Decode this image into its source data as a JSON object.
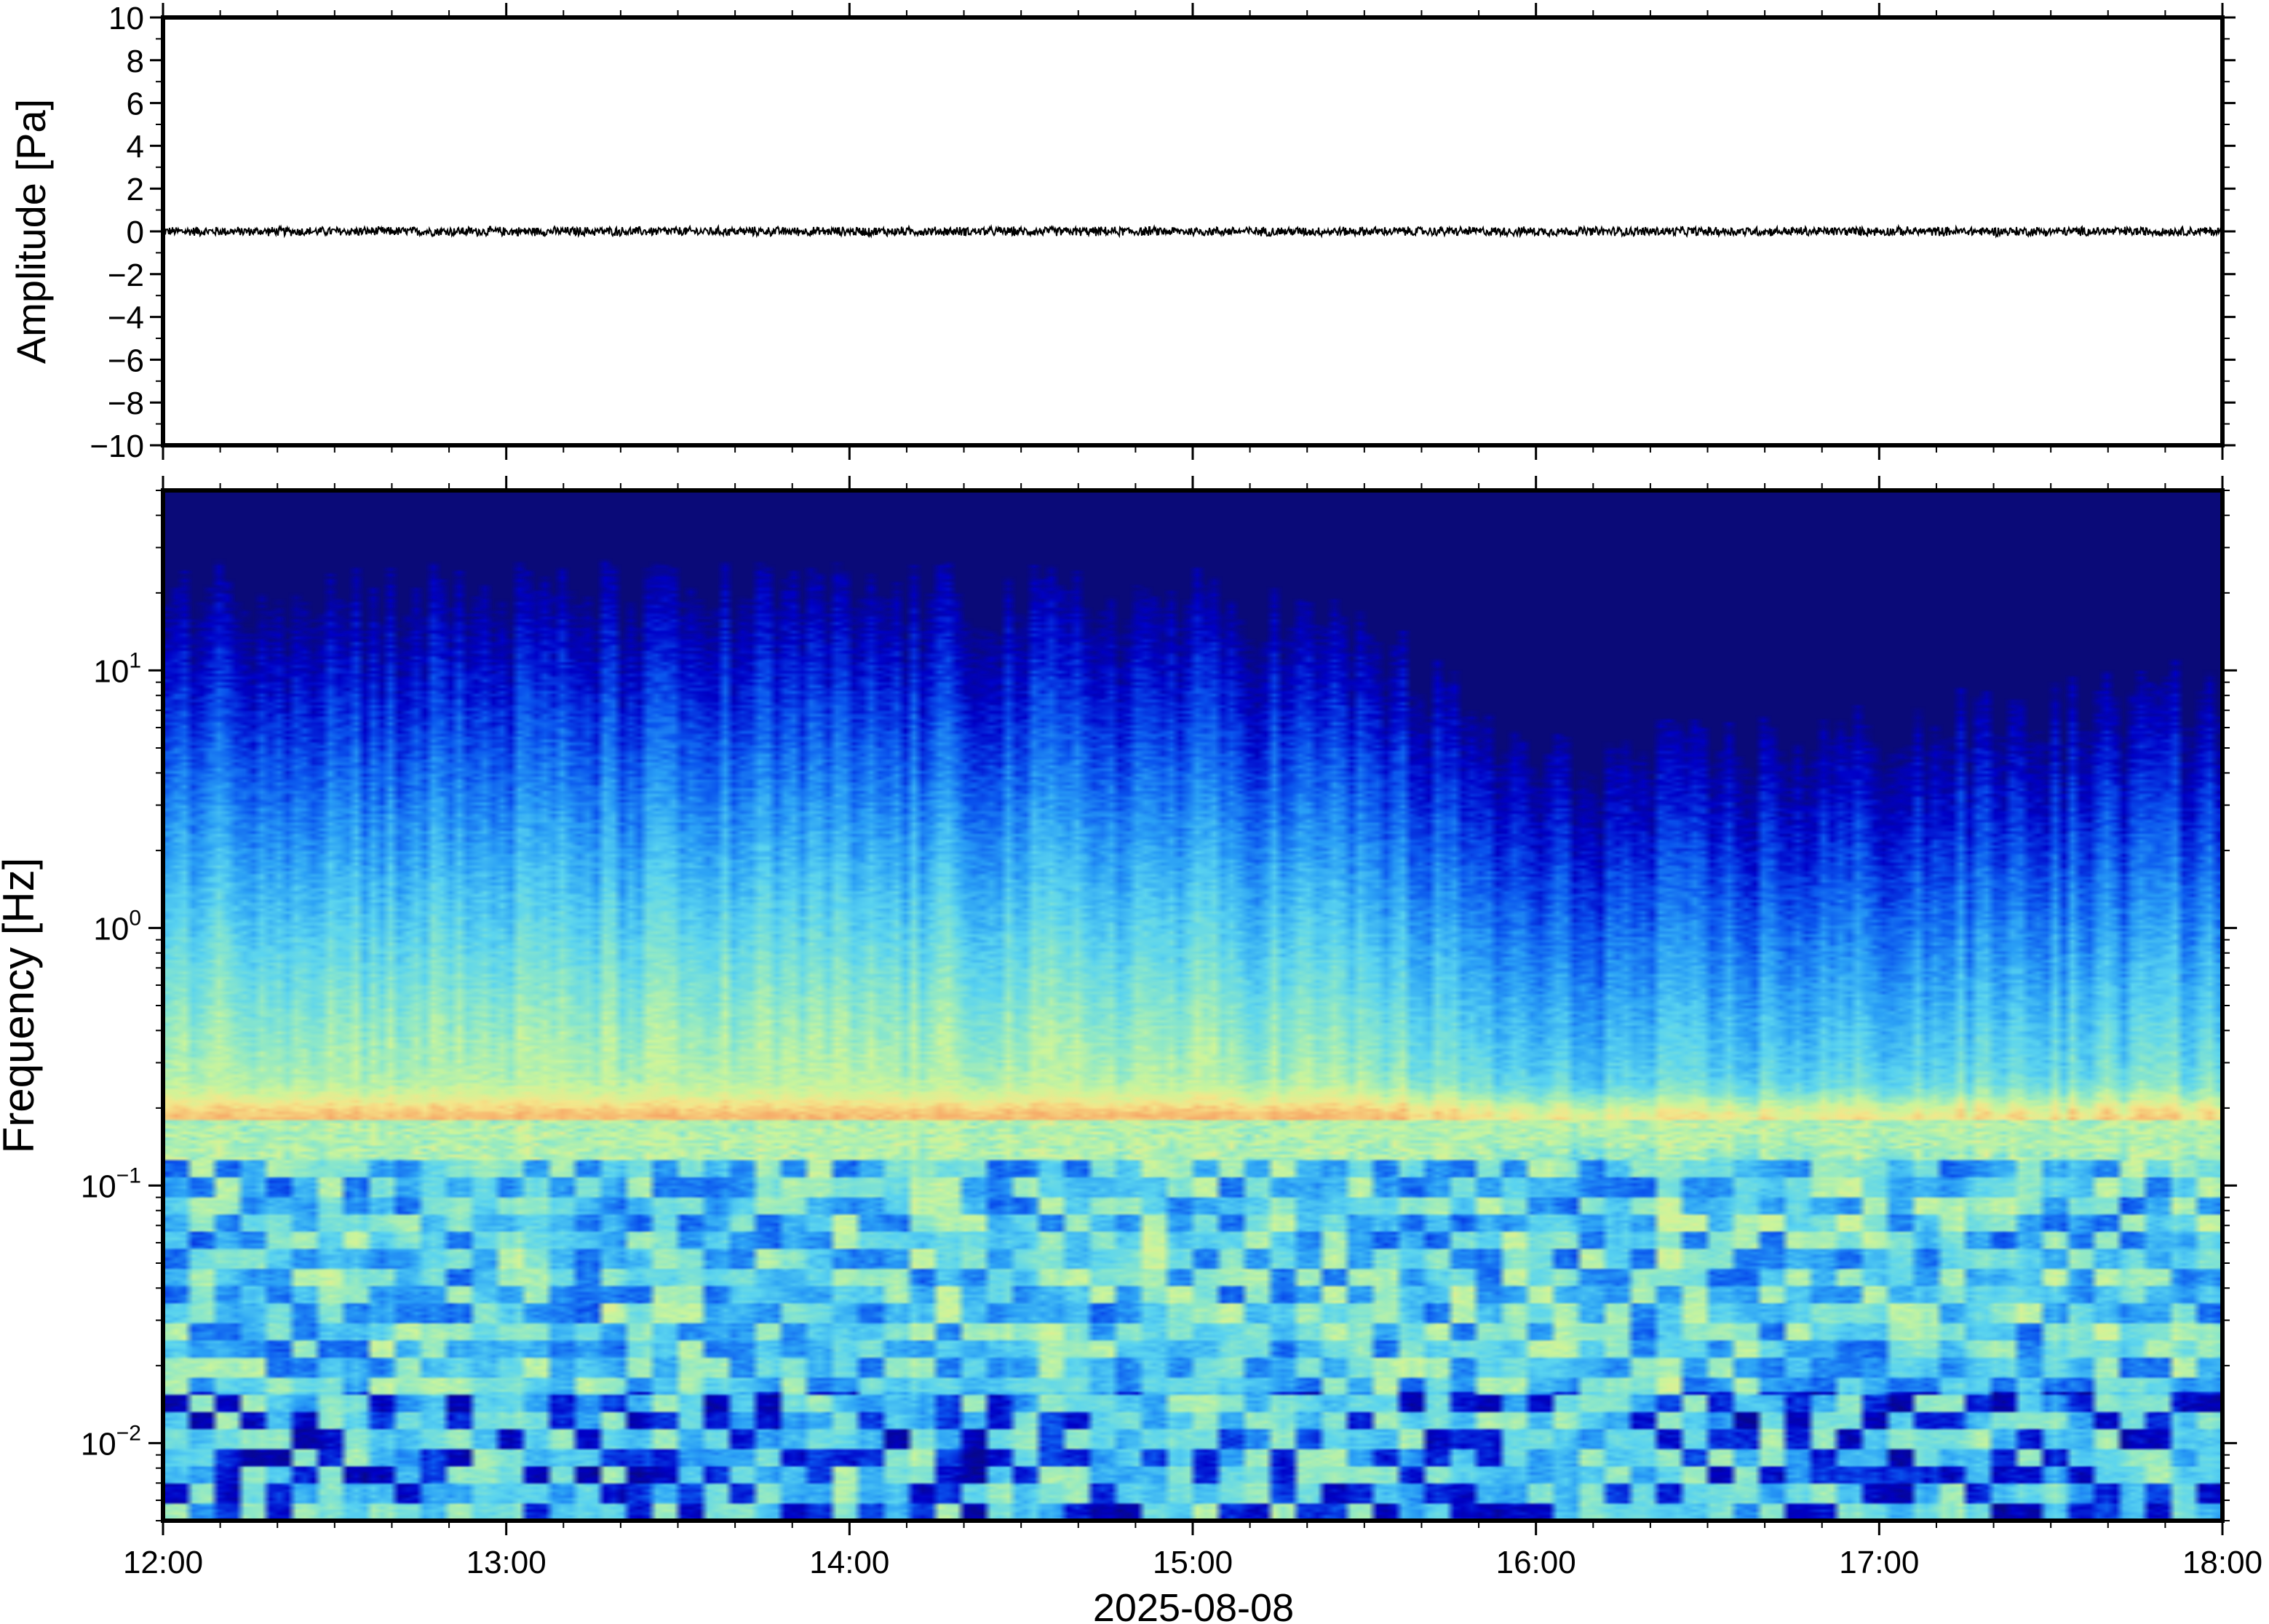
{
  "chart_data": [
    {
      "type": "line",
      "title": "",
      "ylabel": "Amplitude [Pa]",
      "xlabel": "",
      "ylim": [
        -10,
        10
      ],
      "y_ticks": [
        10,
        8,
        6,
        4,
        2,
        0,
        -2,
        -4,
        -6,
        -8,
        -10
      ],
      "y_tick_labels": [
        "10",
        "8",
        "6",
        "4",
        "2",
        "0",
        "−2",
        "−4",
        "−6",
        "−8",
        "−10"
      ],
      "xlim": [
        "2025-08-08 12:00",
        "2025-08-08 18:00"
      ],
      "series": [
        {
          "values_summary": "near-zero pressure trace",
          "x": [
            "2025-08-08 12:00",
            "2025-08-08 18:00"
          ],
          "y": [
            0,
            0
          ],
          "noise_amplitude_pa": 0.15,
          "color": "#000000"
        }
      ],
      "grid": false
    },
    {
      "type": "heatmap",
      "title": "",
      "ylabel": "Frequency [Hz]",
      "xlabel": "2025-08-08",
      "y_scale": "log",
      "ylim": [
        0.005,
        50
      ],
      "y_ticks": [
        0.01,
        0.1,
        1,
        10
      ],
      "y_tick_labels": [
        {
          "base": "10",
          "exp": "−2"
        },
        {
          "base": "10",
          "exp": "−1"
        },
        {
          "base": "10",
          "exp": "0"
        },
        {
          "base": "10",
          "exp": "1"
        }
      ],
      "x_ticks": [
        "12:00",
        "13:00",
        "14:00",
        "15:00",
        "16:00",
        "17:00",
        "18:00"
      ],
      "xlim": [
        "2025-08-08 12:00",
        "2025-08-08 18:00"
      ],
      "colormap": [
        "#0a0a78",
        "#0000c8",
        "#0a55ee",
        "#2aa0f6",
        "#5ad4f0",
        "#8ee8c8",
        "#cdf59a",
        "#f6e68a",
        "#f7b26c",
        "#f08a5a"
      ],
      "features": {
        "microbarom_band_hz": 0.18,
        "upper_cutoff_hz_by_hour": [
          {
            "time": "12:00",
            "cutoff_hz": 15
          },
          {
            "time": "13:00",
            "cutoff_hz": 14
          },
          {
            "time": "14:00",
            "cutoff_hz": 14
          },
          {
            "time": "15:00",
            "cutoff_hz": 13
          },
          {
            "time": "15:30",
            "cutoff_hz": 10
          },
          {
            "time": "16:00",
            "cutoff_hz": 3
          },
          {
            "time": "17:00",
            "cutoff_hz": 4
          },
          {
            "time": "18:00",
            "cutoff_hz": 6
          }
        ]
      },
      "grid": false
    }
  ]
}
